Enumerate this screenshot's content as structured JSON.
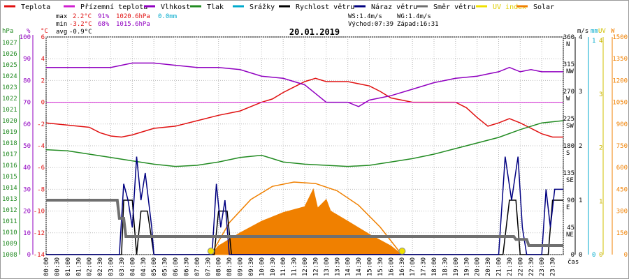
{
  "legend": [
    {
      "label": "Teplota",
      "color": "#e01010"
    },
    {
      "label": "Přízemní teplota",
      "color": "#d020d0"
    },
    {
      "label": "Vlhkost",
      "color": "#9000c0"
    },
    {
      "label": "Tlak",
      "color": "#228b22"
    },
    {
      "label": "Srážky",
      "color": "#00aacc"
    },
    {
      "label": "Rychlost větru",
      "color": "#000000"
    },
    {
      "label": "Náraz větru",
      "color": "#000080"
    },
    {
      "label": "Směr větru",
      "color": "#707070"
    },
    {
      "label": "UV index",
      "color": "#f0e000"
    },
    {
      "label": "Solar",
      "color": "#f08000"
    }
  ],
  "stats": {
    "max_label": "max",
    "max_temp": "2.2°C",
    "max_hum": "91%",
    "max_press": "1020.6hPa",
    "max_rain": "0.0mm",
    "min_label": "min",
    "min_temp": "-3.2°C",
    "min_hum": "68%",
    "min_press": "1015.6hPa",
    "avg_label": "avg",
    "avg_temp": "-0.9°C"
  },
  "wind_info": {
    "ws": "WS:1.4m/s",
    "wg": "WG:1.4m/s",
    "sunrise": "Východ:07:39",
    "sunset": "Západ:16:31"
  },
  "colors": {
    "temp": "#e01010",
    "dew": "#d020d0",
    "hum": "#9000c0",
    "press": "#228b22",
    "rain": "#00aacc",
    "wind": "#000000",
    "gust": "#000080",
    "dir": "#707070",
    "uv": "#f0e000",
    "solar": "#f08000"
  },
  "chart_data": {
    "type": "line",
    "title": "20.01.2019",
    "xlabel": "čas",
    "x_ticks": [
      "00:00",
      "00:30",
      "01:00",
      "01:30",
      "02:00",
      "02:30",
      "03:00",
      "03:30",
      "04:00",
      "04:30",
      "05:00",
      "05:30",
      "06:00",
      "06:30",
      "07:00",
      "07:30",
      "08:00",
      "08:30",
      "09:00",
      "09:30",
      "10:00",
      "10:30",
      "11:00",
      "11:30",
      "12:00",
      "12:30",
      "13:00",
      "13:30",
      "14:00",
      "14:30",
      "15:00",
      "15:30",
      "16:00",
      "16:30",
      "17:00",
      "17:30",
      "18:00",
      "18:30",
      "19:00",
      "19:30",
      "20:00",
      "20:30",
      "21:00",
      "21:30",
      "22:00",
      "22:30",
      "23:00",
      "23:30"
    ],
    "axes": {
      "hpa": {
        "label": "hPa",
        "color": "#228b22",
        "ticks": [
          "1027",
          "1026",
          "1025",
          "1024",
          "1023",
          "1022",
          "1021",
          "1020",
          "1019",
          "1018",
          "1017",
          "1016",
          "1015",
          "1014",
          "1013",
          "1012",
          "1011",
          "1010",
          "1009",
          "1008"
        ],
        "range": [
          1008,
          1027.5
        ]
      },
      "pct": {
        "label": "%",
        "color": "#9000c0",
        "ticks": [
          "100",
          "90",
          "80",
          "70",
          "60",
          "50",
          "40",
          "30",
          "20",
          "10",
          "0"
        ],
        "range": [
          0,
          100
        ]
      },
      "degc": {
        "label": "°C",
        "color": "#e01010",
        "ticks": [
          "6",
          "4",
          "2",
          "0",
          "-2",
          "-4",
          "-6",
          "-8",
          "-10",
          "-12",
          "-14"
        ],
        "range": [
          -14,
          6
        ]
      },
      "ms": {
        "label": "m/s",
        "ticks": [
          "4",
          "3",
          "2",
          "1",
          "0"
        ],
        "range": [
          0,
          4
        ]
      },
      "deg": {
        "label": "°",
        "ticks": [
          "360",
          "315",
          "270",
          "225",
          "180",
          "135",
          "90",
          "45",
          "0"
        ],
        "dirs": [
          "N",
          "NW",
          "W",
          "SW",
          "S",
          "SE",
          "E",
          "NE"
        ],
        "range": [
          0,
          360
        ]
      },
      "mm": {
        "label": "mm",
        "color": "#00aacc",
        "ticks": [
          "1",
          "0"
        ],
        "range": [
          0,
          1
        ]
      },
      "uv": {
        "label": "UV",
        "color": "#d0c000",
        "ticks": [
          "4",
          "3",
          "2",
          "1",
          "0"
        ]
      },
      "w": {
        "label": "W",
        "color": "#f08000",
        "ticks": [
          "1500",
          "1350",
          "1200",
          "1050",
          "900",
          "750",
          "600",
          "450",
          "300",
          "150",
          "0"
        ],
        "range": [
          0,
          1500
        ]
      }
    },
    "series": [
      {
        "name": "Teplota",
        "axis": "degc",
        "points": [
          [
            0,
            -1.9
          ],
          [
            1,
            -2.1
          ],
          [
            2,
            -2.3
          ],
          [
            2.5,
            -2.8
          ],
          [
            3,
            -3.1
          ],
          [
            3.5,
            -3.2
          ],
          [
            4,
            -3.0
          ],
          [
            5,
            -2.4
          ],
          [
            6,
            -2.2
          ],
          [
            7,
            -1.7
          ],
          [
            8,
            -1.2
          ],
          [
            9,
            -0.8
          ],
          [
            9.5,
            -0.4
          ],
          [
            10,
            0
          ],
          [
            10.5,
            0.3
          ],
          [
            11,
            0.9
          ],
          [
            11.5,
            1.4
          ],
          [
            12,
            1.9
          ],
          [
            12.5,
            2.2
          ],
          [
            13,
            1.9
          ],
          [
            14,
            1.9
          ],
          [
            15,
            1.5
          ],
          [
            15.5,
            1.0
          ],
          [
            16,
            0.4
          ],
          [
            16.5,
            0.2
          ],
          [
            17,
            0
          ],
          [
            18,
            0
          ],
          [
            19,
            0
          ],
          [
            19.5,
            -0.5
          ],
          [
            20,
            -1.4
          ],
          [
            20.5,
            -2.2
          ],
          [
            21,
            -1.9
          ],
          [
            21.5,
            -1.5
          ],
          [
            22,
            -1.9
          ],
          [
            22.5,
            -2.4
          ],
          [
            23,
            -2.9
          ],
          [
            23.5,
            -3.2
          ],
          [
            24,
            -3.2
          ]
        ]
      },
      {
        "name": "Přízemní teplota",
        "axis": "degc",
        "points": [
          [
            0,
            0
          ],
          [
            24,
            0
          ]
        ]
      },
      {
        "name": "Vlhkost",
        "axis": "pct",
        "points": [
          [
            0,
            86
          ],
          [
            2,
            86
          ],
          [
            3,
            86
          ],
          [
            4,
            88
          ],
          [
            5,
            88
          ],
          [
            6,
            87
          ],
          [
            7,
            86
          ],
          [
            8,
            86
          ],
          [
            9,
            85
          ],
          [
            10,
            82
          ],
          [
            11,
            81
          ],
          [
            12,
            78
          ],
          [
            12.5,
            74
          ],
          [
            13,
            70
          ],
          [
            14,
            70
          ],
          [
            14.5,
            68
          ],
          [
            15,
            71
          ],
          [
            16,
            73
          ],
          [
            17,
            76
          ],
          [
            18,
            79
          ],
          [
            19,
            81
          ],
          [
            20,
            82
          ],
          [
            20.5,
            83
          ],
          [
            21,
            84
          ],
          [
            21.5,
            86
          ],
          [
            22,
            84
          ],
          [
            22.5,
            85
          ],
          [
            23,
            84
          ],
          [
            24,
            84
          ]
        ]
      },
      {
        "name": "Tlak",
        "axis": "hpa",
        "points": [
          [
            0,
            1017.4
          ],
          [
            1,
            1017.3
          ],
          [
            2,
            1017.0
          ],
          [
            3,
            1016.7
          ],
          [
            4,
            1016.4
          ],
          [
            5,
            1016.1
          ],
          [
            6,
            1015.9
          ],
          [
            7,
            1016.0
          ],
          [
            8,
            1016.3
          ],
          [
            9,
            1016.7
          ],
          [
            10,
            1016.9
          ],
          [
            10.5,
            1016.6
          ],
          [
            11,
            1016.3
          ],
          [
            12,
            1016.1
          ],
          [
            13,
            1016.0
          ],
          [
            14,
            1015.9
          ],
          [
            15,
            1016.0
          ],
          [
            16,
            1016.3
          ],
          [
            17,
            1016.6
          ],
          [
            18,
            1017.0
          ],
          [
            19,
            1017.5
          ],
          [
            20,
            1018.0
          ],
          [
            21,
            1018.5
          ],
          [
            22,
            1019.2
          ],
          [
            23,
            1019.8
          ],
          [
            24,
            1020.0
          ]
        ]
      },
      {
        "name": "Rychlost větru",
        "axis": "ms",
        "points": [
          [
            0,
            0
          ],
          [
            3.5,
            0
          ],
          [
            3.6,
            1
          ],
          [
            4.0,
            1
          ],
          [
            4.2,
            0
          ],
          [
            4.4,
            0.8
          ],
          [
            4.7,
            0.8
          ],
          [
            5.0,
            0
          ],
          [
            7.8,
            0
          ],
          [
            8.0,
            0.8
          ],
          [
            8.4,
            0.8
          ],
          [
            8.6,
            0
          ],
          [
            21.2,
            0
          ],
          [
            21.5,
            1
          ],
          [
            21.8,
            1
          ],
          [
            22.0,
            0
          ],
          [
            23.3,
            0
          ],
          [
            23.5,
            1
          ],
          [
            24,
            1
          ]
        ]
      },
      {
        "name": "Náraz větru",
        "axis": "ms",
        "points": [
          [
            0,
            0
          ],
          [
            3.4,
            0
          ],
          [
            3.6,
            1.3
          ],
          [
            3.8,
            1
          ],
          [
            4.0,
            0.5
          ],
          [
            4.2,
            1.8
          ],
          [
            4.4,
            1.0
          ],
          [
            4.6,
            1.5
          ],
          [
            4.9,
            0.5
          ],
          [
            5.0,
            0
          ],
          [
            7.7,
            0
          ],
          [
            7.9,
            1.3
          ],
          [
            8.1,
            0.5
          ],
          [
            8.3,
            1.0
          ],
          [
            8.5,
            0
          ],
          [
            21.0,
            0
          ],
          [
            21.3,
            1.8
          ],
          [
            21.6,
            1.0
          ],
          [
            21.9,
            1.8
          ],
          [
            22.1,
            0.5
          ],
          [
            22.3,
            0
          ],
          [
            23.0,
            0
          ],
          [
            23.2,
            1.2
          ],
          [
            23.4,
            0.5
          ],
          [
            23.6,
            1.2
          ],
          [
            24,
            1.2
          ]
        ]
      },
      {
        "name": "Směr větru",
        "axis": "deg",
        "points": [
          [
            0,
            90
          ],
          [
            3.3,
            90
          ],
          [
            3.4,
            60
          ],
          [
            3.6,
            60
          ],
          [
            3.7,
            30
          ],
          [
            21.7,
            30
          ],
          [
            21.8,
            25
          ],
          [
            22.3,
            25
          ],
          [
            22.4,
            15
          ],
          [
            24,
            15
          ]
        ]
      },
      {
        "name": "Solar",
        "axis": "w",
        "points": [
          [
            7.65,
            0
          ],
          [
            8,
            60
          ],
          [
            9,
            150
          ],
          [
            10,
            230
          ],
          [
            11,
            290
          ],
          [
            12,
            330
          ],
          [
            12.4,
            450
          ],
          [
            12.6,
            320
          ],
          [
            13,
            380
          ],
          [
            13.2,
            300
          ],
          [
            14,
            230
          ],
          [
            15,
            140
          ],
          [
            16,
            60
          ],
          [
            16.5,
            0
          ]
        ]
      },
      {
        "name": "Solar",
        "axis": "w",
        "style": "clear-sky",
        "points": [
          [
            7.65,
            0
          ],
          [
            8.5,
            220
          ],
          [
            9.5,
            380
          ],
          [
            10.5,
            470
          ],
          [
            11.5,
            500
          ],
          [
            12.5,
            490
          ],
          [
            13.5,
            440
          ],
          [
            14.5,
            340
          ],
          [
            15.5,
            190
          ],
          [
            16.5,
            0
          ]
        ]
      }
    ],
    "sun_markers": [
      7.65,
      16.52
    ],
    "grid": true
  }
}
